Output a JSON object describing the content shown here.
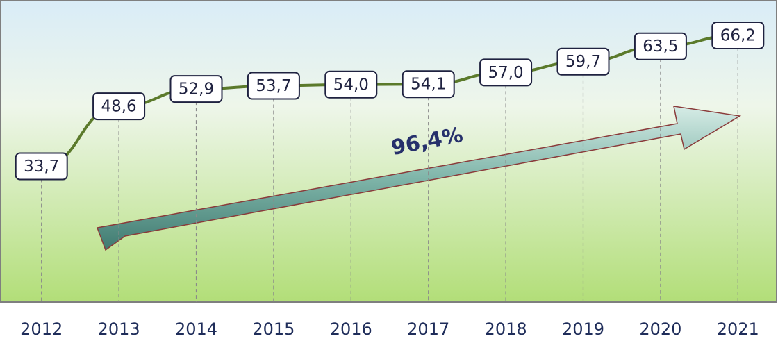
{
  "chart_data": {
    "type": "line",
    "categories": [
      "2012",
      "2013",
      "2014",
      "2015",
      "2016",
      "2017",
      "2018",
      "2019",
      "2020",
      "2021"
    ],
    "series": [
      {
        "name": null,
        "color": "#5b7a2b",
        "values": [
          33.7,
          48.6,
          52.9,
          53.7,
          54.0,
          54.1,
          57.0,
          59.7,
          63.5,
          66.2
        ],
        "value_labels": [
          "33,7",
          "48,6",
          "52,9",
          "53,7",
          "54,0",
          "54,1",
          "57,0",
          "59,7",
          "63,5",
          "66,2"
        ]
      }
    ],
    "ylim": [
      0,
      75
    ],
    "annotation": "96,4%"
  }
}
